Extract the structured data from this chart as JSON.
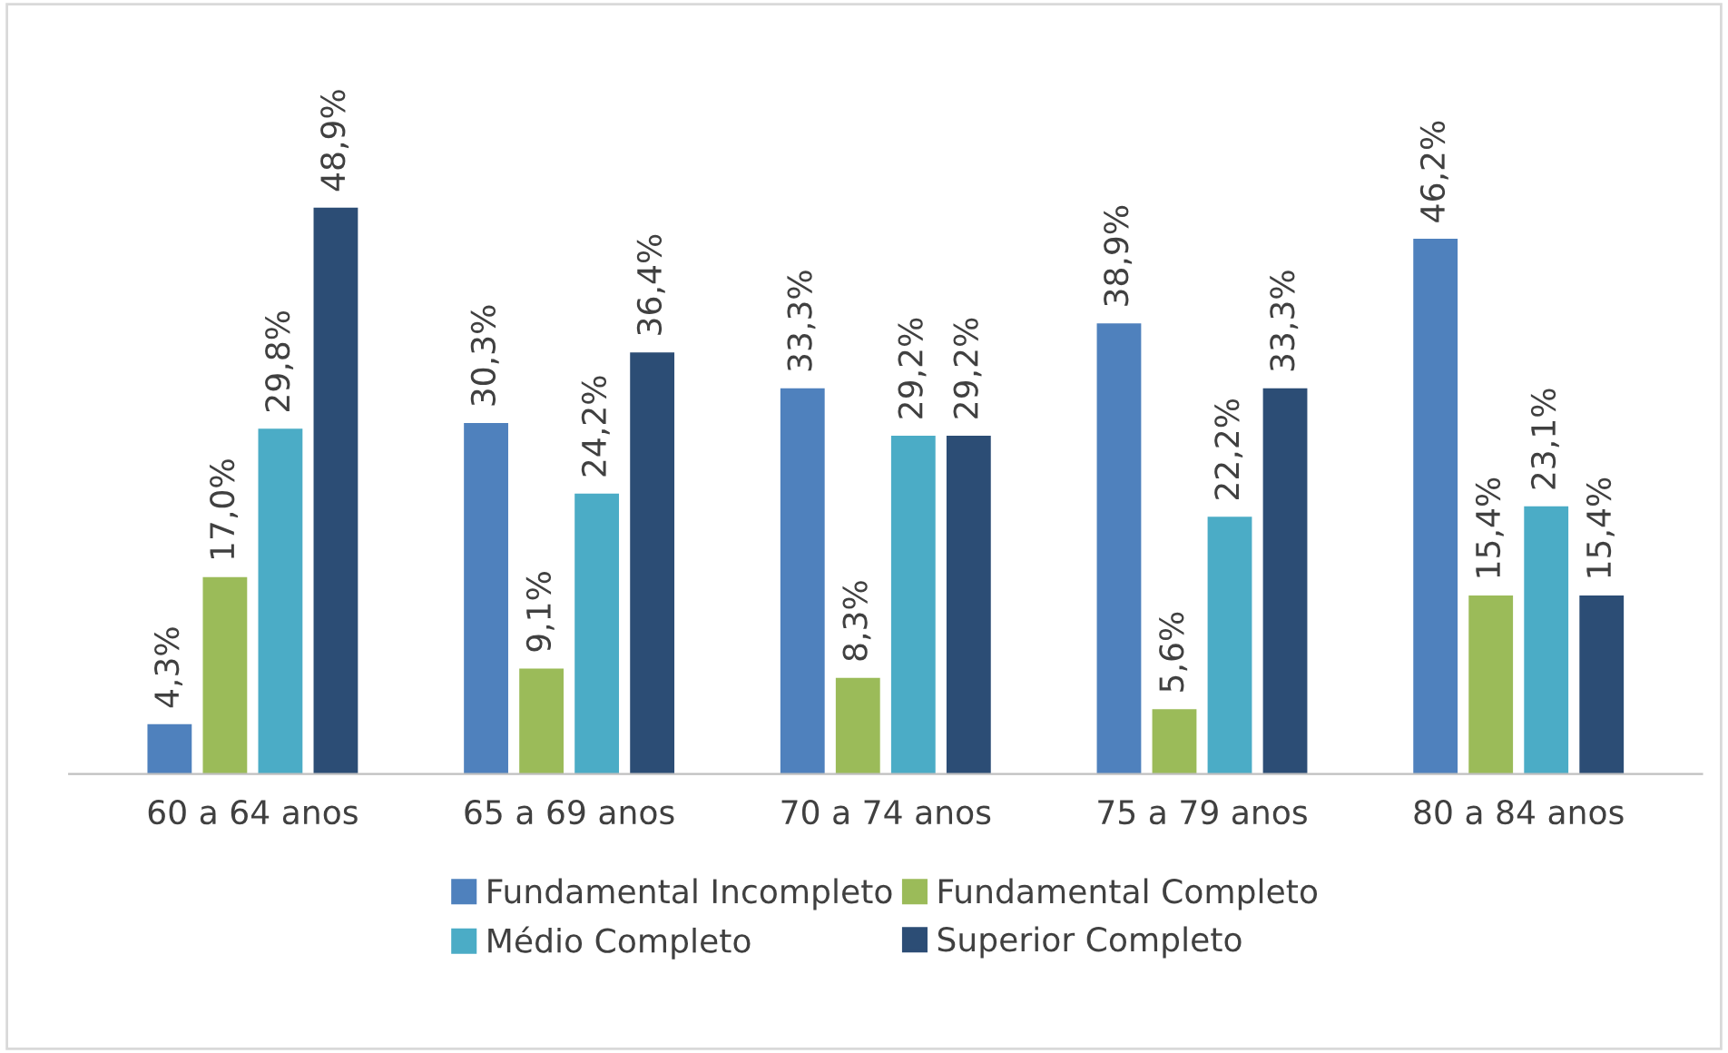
{
  "chart_data": {
    "type": "bar",
    "categories": [
      "60 a 64 anos",
      "65 a 69 anos",
      "70 a 74 anos",
      "75 a 79 anos",
      "80 a 84 anos"
    ],
    "series": [
      {
        "name": "Fundamental Incompleto",
        "color": "#4f81bd",
        "values": [
          4.3,
          30.3,
          33.3,
          38.9,
          46.2
        ],
        "value_labels": [
          "4,3%",
          "30,3%",
          "33,3%",
          "38,9%",
          "46,2%"
        ]
      },
      {
        "name": "Fundamental Completo",
        "color": "#9bbb59",
        "values": [
          17.0,
          9.1,
          8.3,
          5.6,
          15.4
        ],
        "value_labels": [
          "17,0%",
          "9,1%",
          "8,3%",
          "5,6%",
          "15,4%"
        ]
      },
      {
        "name": "Médio Completo",
        "color": "#4bacc6",
        "values": [
          29.8,
          24.2,
          29.2,
          22.2,
          23.1
        ],
        "value_labels": [
          "29,8%",
          "24,2%",
          "29,2%",
          "22,2%",
          "23,1%"
        ]
      },
      {
        "name": "Superior Completo",
        "color": "#2c4d75",
        "values": [
          48.9,
          36.4,
          29.2,
          33.3,
          15.4
        ],
        "value_labels": [
          "48,9%",
          "36,4%",
          "29,2%",
          "33,3%",
          "15,4%"
        ]
      }
    ],
    "legend": "bottom",
    "grid": false,
    "tick_labels": "x"
  }
}
